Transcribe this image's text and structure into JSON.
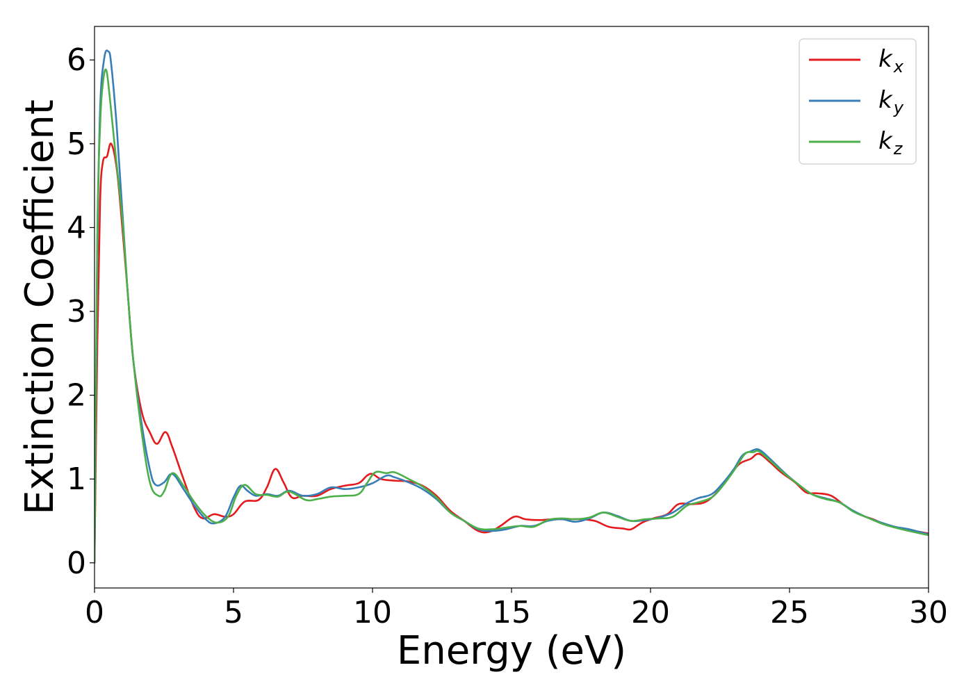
{
  "chart_data": {
    "type": "line",
    "xlabel": "Energy (eV)",
    "ylabel": "Extinction Coefficient",
    "xlim": [
      0,
      30
    ],
    "ylim": [
      -0.3,
      6.4
    ],
    "xticks": [
      0,
      5,
      10,
      15,
      20,
      25,
      30
    ],
    "yticks": [
      0,
      1,
      2,
      3,
      4,
      5,
      6
    ],
    "grid": false,
    "legend_position": "top-right",
    "series": [
      {
        "key": "kx",
        "label_base": "k",
        "label_sub": "x",
        "color": "#e41a1c",
        "points": [
          [
            0,
            0
          ],
          [
            0.1,
            2.6
          ],
          [
            0.2,
            4.3
          ],
          [
            0.3,
            4.78
          ],
          [
            0.45,
            4.85
          ],
          [
            0.6,
            5.0
          ],
          [
            0.8,
            4.7
          ],
          [
            1.0,
            4.0
          ],
          [
            1.2,
            3.2
          ],
          [
            1.4,
            2.4
          ],
          [
            1.7,
            1.8
          ],
          [
            2.0,
            1.55
          ],
          [
            2.25,
            1.42
          ],
          [
            2.55,
            1.56
          ],
          [
            2.8,
            1.38
          ],
          [
            3.2,
            1.0
          ],
          [
            3.6,
            0.65
          ],
          [
            3.9,
            0.53
          ],
          [
            4.3,
            0.58
          ],
          [
            4.7,
            0.55
          ],
          [
            5.0,
            0.58
          ],
          [
            5.4,
            0.73
          ],
          [
            5.9,
            0.75
          ],
          [
            6.2,
            0.9
          ],
          [
            6.5,
            1.12
          ],
          [
            6.8,
            0.96
          ],
          [
            7.1,
            0.78
          ],
          [
            7.5,
            0.8
          ],
          [
            8.0,
            0.8
          ],
          [
            8.5,
            0.88
          ],
          [
            9.0,
            0.92
          ],
          [
            9.5,
            0.95
          ],
          [
            9.8,
            1.04
          ],
          [
            10.0,
            1.06
          ],
          [
            10.3,
            1.0
          ],
          [
            10.8,
            0.98
          ],
          [
            11.3,
            0.97
          ],
          [
            11.8,
            0.92
          ],
          [
            12.3,
            0.8
          ],
          [
            12.8,
            0.62
          ],
          [
            13.3,
            0.5
          ],
          [
            13.8,
            0.38
          ],
          [
            14.2,
            0.37
          ],
          [
            14.6,
            0.44
          ],
          [
            15.1,
            0.55
          ],
          [
            15.5,
            0.52
          ],
          [
            16.0,
            0.51
          ],
          [
            16.5,
            0.52
          ],
          [
            17.0,
            0.52
          ],
          [
            17.5,
            0.52
          ],
          [
            18.0,
            0.5
          ],
          [
            18.5,
            0.43
          ],
          [
            19.0,
            0.41
          ],
          [
            19.3,
            0.4
          ],
          [
            19.7,
            0.48
          ],
          [
            20.1,
            0.53
          ],
          [
            20.6,
            0.58
          ],
          [
            21.0,
            0.7
          ],
          [
            21.5,
            0.7
          ],
          [
            22.0,
            0.73
          ],
          [
            22.5,
            0.88
          ],
          [
            22.8,
            1.02
          ],
          [
            23.2,
            1.18
          ],
          [
            23.6,
            1.24
          ],
          [
            23.9,
            1.3
          ],
          [
            24.3,
            1.2
          ],
          [
            24.7,
            1.08
          ],
          [
            25.2,
            0.96
          ],
          [
            25.6,
            0.84
          ],
          [
            26.0,
            0.83
          ],
          [
            26.5,
            0.8
          ],
          [
            27.0,
            0.68
          ],
          [
            27.5,
            0.58
          ],
          [
            28.0,
            0.52
          ],
          [
            28.5,
            0.45
          ],
          [
            29.0,
            0.41
          ],
          [
            29.5,
            0.38
          ],
          [
            30.0,
            0.35
          ]
        ]
      },
      {
        "key": "ky",
        "label_base": "k",
        "label_sub": "y",
        "color": "#377eb8",
        "points": [
          [
            0,
            0
          ],
          [
            0.1,
            3.6
          ],
          [
            0.2,
            5.4
          ],
          [
            0.35,
            6.02
          ],
          [
            0.5,
            6.1
          ],
          [
            0.6,
            5.95
          ],
          [
            0.8,
            5.2
          ],
          [
            1.0,
            4.2
          ],
          [
            1.2,
            3.2
          ],
          [
            1.4,
            2.4
          ],
          [
            1.7,
            1.65
          ],
          [
            2.0,
            1.1
          ],
          [
            2.2,
            0.93
          ],
          [
            2.5,
            0.96
          ],
          [
            2.8,
            1.06
          ],
          [
            3.2,
            0.88
          ],
          [
            3.6,
            0.68
          ],
          [
            4.0,
            0.52
          ],
          [
            4.3,
            0.47
          ],
          [
            4.7,
            0.55
          ],
          [
            5.0,
            0.78
          ],
          [
            5.25,
            0.92
          ],
          [
            5.5,
            0.86
          ],
          [
            5.8,
            0.8
          ],
          [
            6.2,
            0.82
          ],
          [
            6.6,
            0.8
          ],
          [
            7.0,
            0.86
          ],
          [
            7.5,
            0.8
          ],
          [
            8.0,
            0.82
          ],
          [
            8.5,
            0.9
          ],
          [
            9.0,
            0.88
          ],
          [
            9.5,
            0.9
          ],
          [
            10.0,
            0.95
          ],
          [
            10.5,
            1.04
          ],
          [
            10.8,
            1.02
          ],
          [
            11.3,
            0.96
          ],
          [
            11.8,
            0.88
          ],
          [
            12.3,
            0.76
          ],
          [
            12.8,
            0.6
          ],
          [
            13.3,
            0.5
          ],
          [
            13.8,
            0.4
          ],
          [
            14.3,
            0.38
          ],
          [
            14.8,
            0.4
          ],
          [
            15.3,
            0.44
          ],
          [
            15.8,
            0.44
          ],
          [
            16.3,
            0.5
          ],
          [
            16.8,
            0.52
          ],
          [
            17.3,
            0.49
          ],
          [
            17.8,
            0.53
          ],
          [
            18.3,
            0.6
          ],
          [
            18.8,
            0.56
          ],
          [
            19.3,
            0.5
          ],
          [
            19.8,
            0.51
          ],
          [
            20.3,
            0.54
          ],
          [
            20.8,
            0.6
          ],
          [
            21.3,
            0.71
          ],
          [
            21.7,
            0.77
          ],
          [
            22.2,
            0.82
          ],
          [
            22.6,
            0.95
          ],
          [
            23.0,
            1.12
          ],
          [
            23.3,
            1.28
          ],
          [
            23.6,
            1.33
          ],
          [
            23.9,
            1.35
          ],
          [
            24.3,
            1.24
          ],
          [
            24.8,
            1.08
          ],
          [
            25.3,
            0.94
          ],
          [
            25.8,
            0.82
          ],
          [
            26.3,
            0.77
          ],
          [
            26.8,
            0.72
          ],
          [
            27.3,
            0.62
          ],
          [
            27.8,
            0.54
          ],
          [
            28.3,
            0.48
          ],
          [
            28.8,
            0.43
          ],
          [
            29.3,
            0.4
          ],
          [
            30.0,
            0.34
          ]
        ]
      },
      {
        "key": "kz",
        "label_base": "k",
        "label_sub": "z",
        "color": "#4daf4a",
        "points": [
          [
            0,
            0
          ],
          [
            0.1,
            3.9
          ],
          [
            0.2,
            5.2
          ],
          [
            0.3,
            5.72
          ],
          [
            0.42,
            5.88
          ],
          [
            0.55,
            5.55
          ],
          [
            0.75,
            4.9
          ],
          [
            1.0,
            4.1
          ],
          [
            1.2,
            3.2
          ],
          [
            1.4,
            2.4
          ],
          [
            1.7,
            1.55
          ],
          [
            2.0,
            0.95
          ],
          [
            2.3,
            0.8
          ],
          [
            2.5,
            0.85
          ],
          [
            2.8,
            1.07
          ],
          [
            3.2,
            0.92
          ],
          [
            3.6,
            0.72
          ],
          [
            4.0,
            0.56
          ],
          [
            4.4,
            0.48
          ],
          [
            4.8,
            0.55
          ],
          [
            5.1,
            0.8
          ],
          [
            5.4,
            0.93
          ],
          [
            5.8,
            0.82
          ],
          [
            6.2,
            0.81
          ],
          [
            6.6,
            0.79
          ],
          [
            7.0,
            0.85
          ],
          [
            7.6,
            0.75
          ],
          [
            8.0,
            0.76
          ],
          [
            8.5,
            0.79
          ],
          [
            9.0,
            0.8
          ],
          [
            9.5,
            0.82
          ],
          [
            9.8,
            0.95
          ],
          [
            10.1,
            1.08
          ],
          [
            10.5,
            1.07
          ],
          [
            10.8,
            1.08
          ],
          [
            11.3,
            1.0
          ],
          [
            11.8,
            0.91
          ],
          [
            12.3,
            0.78
          ],
          [
            12.8,
            0.6
          ],
          [
            13.3,
            0.5
          ],
          [
            13.8,
            0.41
          ],
          [
            14.3,
            0.4
          ],
          [
            14.8,
            0.42
          ],
          [
            15.3,
            0.44
          ],
          [
            15.8,
            0.43
          ],
          [
            16.3,
            0.51
          ],
          [
            16.8,
            0.53
          ],
          [
            17.3,
            0.52
          ],
          [
            17.8,
            0.54
          ],
          [
            18.3,
            0.6
          ],
          [
            18.8,
            0.55
          ],
          [
            19.3,
            0.5
          ],
          [
            19.8,
            0.52
          ],
          [
            20.3,
            0.53
          ],
          [
            20.8,
            0.55
          ],
          [
            21.3,
            0.68
          ],
          [
            21.7,
            0.72
          ],
          [
            22.2,
            0.78
          ],
          [
            22.6,
            0.92
          ],
          [
            23.0,
            1.1
          ],
          [
            23.4,
            1.3
          ],
          [
            23.7,
            1.32
          ],
          [
            23.9,
            1.33
          ],
          [
            24.3,
            1.22
          ],
          [
            24.8,
            1.07
          ],
          [
            25.3,
            0.94
          ],
          [
            25.8,
            0.82
          ],
          [
            26.3,
            0.76
          ],
          [
            26.8,
            0.72
          ],
          [
            27.3,
            0.61
          ],
          [
            27.8,
            0.54
          ],
          [
            28.3,
            0.47
          ],
          [
            28.8,
            0.42
          ],
          [
            29.3,
            0.38
          ],
          [
            30.0,
            0.33
          ]
        ]
      }
    ]
  }
}
